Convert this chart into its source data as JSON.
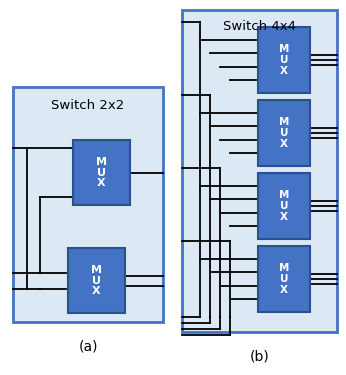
{
  "bg_color": "#ffffff",
  "panel_fill": "#dce9f5",
  "panel_edge": "#4472c4",
  "mux_fill": "#4472c4",
  "mux_edge": "#2a5090",
  "mux_text_color": "#ffffff",
  "line_color": "#000000",
  "label_color": "#000000",
  "title_color": "#000000",
  "switch2_title": "Switch 2x2",
  "switch4_title": "Switch 4x4",
  "label_a": "(a)",
  "label_b": "(b)",
  "mux_text": "M\nU\nX",
  "figsize": [
    3.46,
    3.75
  ],
  "dpi": 100
}
